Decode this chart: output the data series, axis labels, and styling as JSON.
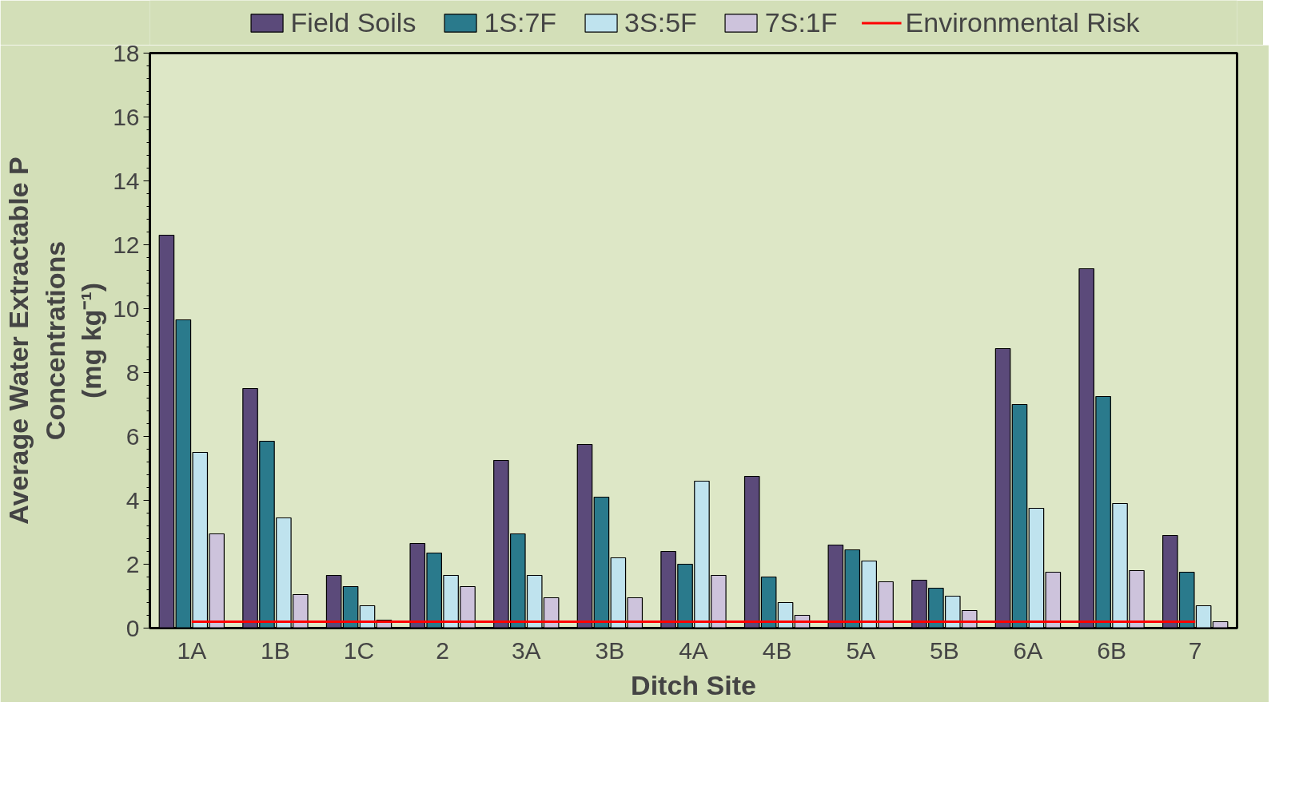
{
  "chart_data": {
    "type": "bar",
    "xlabel": "Ditch Site",
    "ylabel": "Average Water Extractable P\nConcentrations\n(mg kg⁻¹)",
    "categories": [
      "1A",
      "1B",
      "1C",
      "2",
      "3A",
      "3B",
      "4A",
      "4B",
      "5A",
      "5B",
      "6A",
      "6B",
      "7"
    ],
    "series": [
      {
        "name": "Field Soils",
        "color": "#5b4a7a",
        "values": [
          12.3,
          7.5,
          1.65,
          2.65,
          5.25,
          5.75,
          2.4,
          4.75,
          2.6,
          1.5,
          8.75,
          11.25,
          2.9
        ]
      },
      {
        "name": "1S:7F",
        "color": "#2a7a8c",
        "values": [
          9.65,
          5.85,
          1.3,
          2.35,
          2.95,
          4.1,
          2.0,
          1.6,
          2.45,
          1.25,
          7.0,
          7.25,
          1.75
        ]
      },
      {
        "name": "3S:5F",
        "color": "#bfe3ee",
        "values": [
          5.5,
          3.45,
          0.7,
          1.65,
          1.65,
          2.2,
          4.6,
          0.8,
          2.1,
          1.0,
          3.75,
          3.9,
          0.7
        ]
      },
      {
        "name": "7S:1F",
        "color": "#cdc3dc",
        "values": [
          2.95,
          1.05,
          0.25,
          1.3,
          0.95,
          0.95,
          1.65,
          0.4,
          1.45,
          0.55,
          1.75,
          1.8,
          0.2
        ]
      },
      {
        "name": "Environmental Risk",
        "type": "line",
        "color": "#ff0000",
        "values": [
          0.2,
          0.2,
          0.2,
          0.2,
          0.2,
          0.2,
          0.2,
          0.2,
          0.2,
          0.2,
          0.2,
          0.2,
          0.2
        ]
      }
    ],
    "ylim": [
      0,
      18
    ],
    "yticks": [
      0,
      2,
      4,
      6,
      8,
      10,
      12,
      14,
      16,
      18
    ],
    "grid": false,
    "legend": "top"
  }
}
